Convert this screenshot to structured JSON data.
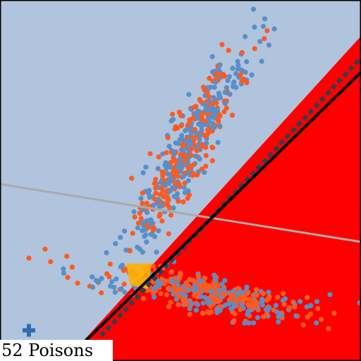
{
  "colors": {
    "background": "#b0c4de",
    "region": "#ff0000",
    "frame": "#000000",
    "boundary_solid": "#000000",
    "boundary_dashed": "#2f3f4f",
    "reference_line": "#aaaaaa",
    "class_blue": "#5a8ec7",
    "class_orange": "#ff5a1f",
    "poison_marker": "#2e6eb0",
    "highlight": "#ffb000"
  },
  "chart_data": {
    "type": "scatter",
    "xlim": [
      0,
      100
    ],
    "ylim": [
      0,
      100
    ],
    "grid": false,
    "legend": "none",
    "label": "52 Poisons",
    "region": {
      "polygon": [
        [
          100,
          90
        ],
        [
          100,
          0
        ],
        [
          18,
          0
        ]
      ]
    },
    "lines": [
      {
        "style": "solid",
        "points": [
          [
            18,
            0
          ],
          [
            100,
            80
          ]
        ]
      },
      {
        "style": "dashed",
        "points": [
          [
            28,
            7
          ],
          [
            100,
            84
          ]
        ]
      },
      {
        "style": "reference",
        "points": [
          [
            0,
            49
          ],
          [
            100,
            33
          ]
        ]
      }
    ],
    "highlight": {
      "polygon": [
        [
          35,
          27
        ],
        [
          42,
          27
        ],
        [
          41,
          20
        ],
        [
          36,
          21
        ]
      ]
    },
    "poison_marker": {
      "x": 8,
      "y": 8.5,
      "symbol": "plus"
    },
    "clusters": [
      {
        "class": "mixed",
        "center": [
          52,
          59
        ],
        "spread_major": 15,
        "spread_minor": 2.8,
        "angle_deg": 62,
        "count": 520,
        "orange_ratio": 0.47
      },
      {
        "class": "mixed",
        "center": [
          56,
          19
        ],
        "spread_major": 14,
        "spread_minor": 2.5,
        "angle_deg": -9,
        "count": 420,
        "orange_ratio": 0.55
      }
    ],
    "outliers": [
      {
        "x": 74,
        "y": 91.5,
        "class": "orange"
      },
      {
        "x": 76,
        "y": 92,
        "class": "blue"
      },
      {
        "x": 72,
        "y": 88.5,
        "class": "blue"
      },
      {
        "x": 74.5,
        "y": 87.5,
        "class": "blue"
      },
      {
        "x": 72.5,
        "y": 83,
        "class": "blue"
      },
      {
        "x": 68,
        "y": 80,
        "class": "blue"
      },
      {
        "x": 67,
        "y": 77.5,
        "class": "orange"
      },
      {
        "x": 8,
        "y": 28.5,
        "class": "orange"
      },
      {
        "x": 12.5,
        "y": 31,
        "class": "orange"
      },
      {
        "x": 14,
        "y": 27.5,
        "class": "orange"
      },
      {
        "x": 18.5,
        "y": 29,
        "class": "orange"
      },
      {
        "x": 20,
        "y": 26,
        "class": "orange"
      },
      {
        "x": 32,
        "y": 32.5,
        "class": "blue"
      },
      {
        "x": 29.5,
        "y": 30,
        "class": "blue"
      },
      {
        "x": 36,
        "y": 30.5,
        "class": "orange"
      },
      {
        "x": 34.5,
        "y": 36,
        "class": "blue"
      },
      {
        "x": 85,
        "y": 15,
        "class": "blue"
      },
      {
        "x": 89,
        "y": 11.5,
        "class": "orange"
      },
      {
        "x": 86,
        "y": 13,
        "class": "orange"
      },
      {
        "x": 91,
        "y": 9,
        "class": "orange"
      },
      {
        "x": 84,
        "y": 10,
        "class": "orange"
      },
      {
        "x": 82,
        "y": 12.5,
        "class": "blue"
      },
      {
        "x": 88,
        "y": 14.5,
        "class": "orange"
      },
      {
        "x": 61,
        "y": 14,
        "class": "blue"
      }
    ]
  }
}
